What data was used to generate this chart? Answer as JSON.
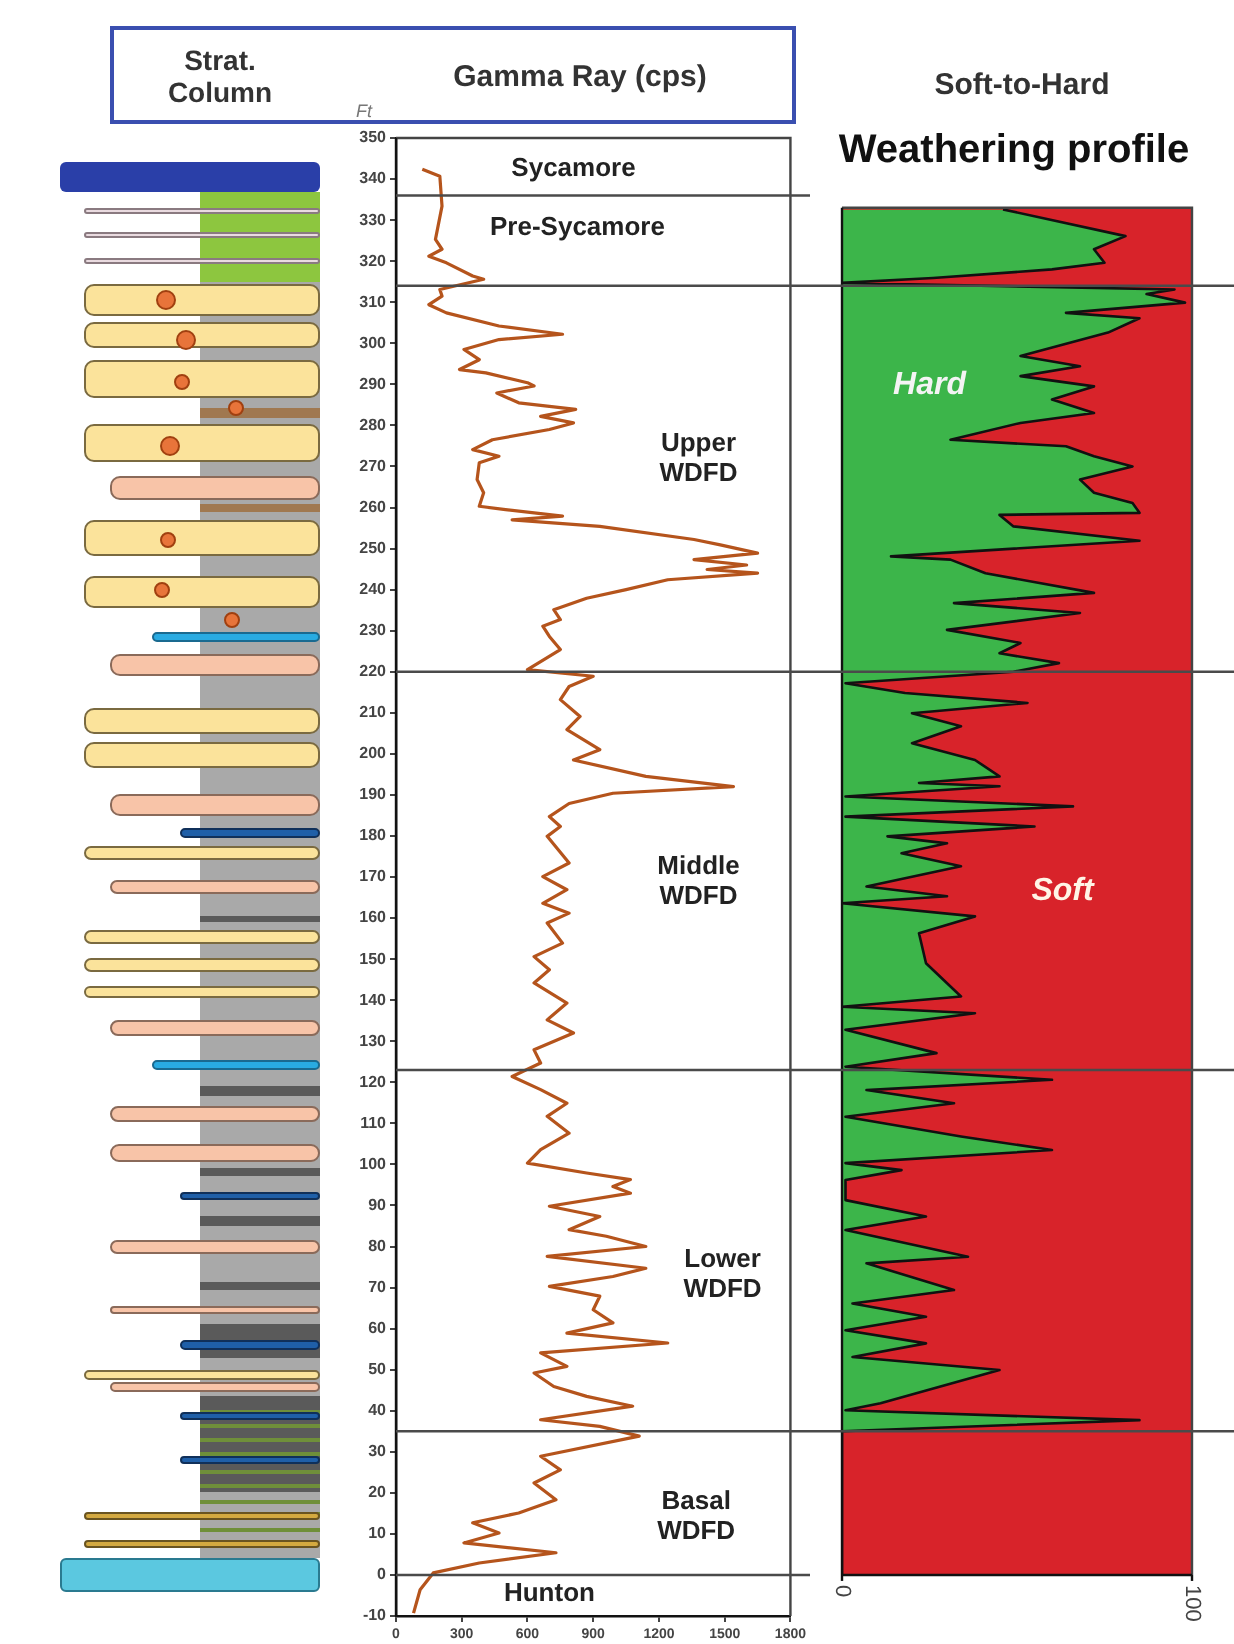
{
  "chart_data": [
    {
      "type": "other",
      "title": "Strat. Column"
    },
    {
      "type": "line",
      "title": "Gamma Ray (cps)",
      "ylabel": "Ft",
      "orientation": "horizontal",
      "grid": false,
      "xlim": [
        0,
        1800
      ],
      "xticks": [
        0,
        300,
        600,
        900,
        1200,
        1500,
        1800
      ],
      "ylim": [
        -10,
        350
      ],
      "yticks": [
        -10,
        0,
        10,
        20,
        30,
        40,
        50,
        60,
        70,
        80,
        90,
        100,
        110,
        120,
        130,
        140,
        150,
        160,
        170,
        180,
        190,
        200,
        210,
        220,
        230,
        240,
        250,
        260,
        270,
        280,
        290,
        300,
        310,
        320,
        330,
        340,
        350
      ],
      "series": [
        {
          "color": "#b5541c",
          "x": [
            342.4,
            340.7,
            333.4,
            325.3,
            322.9,
            321.2,
            319.6,
            316.4,
            315.6,
            313.1,
            311.5,
            309.4,
            307.4,
            304.2,
            302.2,
            300.9,
            298.5,
            296,
            293.6,
            292.8,
            290.4,
            289.6,
            287.9,
            285.5,
            283.9,
            282.2,
            280.6,
            279,
            276.5,
            274.1,
            272.5,
            270.9,
            266.8,
            263.6,
            260.3,
            259.5,
            257.9,
            257,
            255.4,
            252.2,
            250.9,
            248.9,
            247.3,
            246,
            244.9,
            244,
            242.4,
            240,
            237.9,
            235.1,
            232.7,
            231.1,
            228.6,
            225.4,
            220.5,
            218.9,
            216.4,
            213.2,
            209.1,
            205.9,
            201,
            198.5,
            194.5,
            192,
            190.4,
            187.9,
            184.7,
            182.3,
            179.9,
            173.4,
            170.1,
            166.9,
            163.6,
            161.2,
            158.8,
            153.9,
            150.6,
            147.4,
            144.2,
            139.3,
            135.2,
            132,
            127.9,
            124.7,
            121.4,
            118.2,
            114.9,
            111.7,
            107.6,
            103.6,
            100.3,
            97.9,
            96.3,
            94.6,
            93,
            89.8,
            87.3,
            84.1,
            82.5,
            80,
            77.6,
            74.7,
            72.7,
            70.3,
            67.9,
            64.6,
            61.4,
            58.9,
            56.5,
            54.1,
            50.8,
            49.2,
            45.9,
            43.5,
            41.1,
            37.8,
            36.2,
            33.8,
            28.9,
            25.6,
            22.4,
            18.3,
            15.1,
            12.7,
            10.2,
            7.8,
            5.4,
            2.9,
            0.5,
            -3.6,
            -9.3
          ],
          "values": [
            120,
            200,
            210,
            180,
            210,
            150,
            230,
            350,
            400,
            200,
            210,
            150,
            230,
            470,
            760,
            470,
            310,
            380,
            290,
            410,
            600,
            630,
            460,
            560,
            820,
            660,
            810,
            700,
            440,
            350,
            470,
            380,
            370,
            400,
            380,
            500,
            760,
            530,
            930,
            1360,
            1480,
            1650,
            1360,
            1600,
            1420,
            1650,
            1240,
            1050,
            870,
            720,
            750,
            670,
            700,
            750,
            600,
            900,
            790,
            750,
            840,
            780,
            930,
            810,
            1140,
            1540,
            990,
            790,
            700,
            750,
            690,
            790,
            670,
            780,
            670,
            790,
            690,
            760,
            630,
            700,
            630,
            780,
            690,
            810,
            630,
            660,
            530,
            660,
            780,
            690,
            790,
            660,
            600,
            870,
            1070,
            990,
            1070,
            700,
            930,
            790,
            960,
            1140,
            690,
            1140,
            990,
            700,
            930,
            900,
            990,
            780,
            1240,
            660,
            780,
            630,
            720,
            870,
            1080,
            660,
            930,
            1110,
            660,
            750,
            630,
            730,
            560,
            350,
            470,
            310,
            730,
            380,
            170,
            110,
            80
          ]
        }
      ],
      "ref_lines": [
        {
          "axis": "y",
          "value": 336
        },
        {
          "axis": "y",
          "value": 314
        },
        {
          "axis": "y",
          "value": 220
        },
        {
          "axis": "y",
          "value": 123
        },
        {
          "axis": "y",
          "value": 35
        },
        {
          "axis": "y",
          "value": 0
        }
      ],
      "annotations": [
        "Sycamore",
        "Pre-Sycamore",
        "Upper\nWDFD",
        "Middle\nWDFD",
        "Lower\nWDFD",
        "Basal\nWDFD",
        "Hunton"
      ]
    },
    {
      "type": "area",
      "title": "Soft-to-Hard",
      "subtitle": "Weathering profile",
      "orientation": "horizontal",
      "tick_labels": "x",
      "xlim": [
        0,
        100
      ],
      "xticks": [
        0,
        100
      ],
      "ylim": [
        -10,
        350
      ],
      "yticks": [
        -10,
        0,
        10,
        20,
        30,
        40,
        50,
        60,
        70,
        80,
        90,
        100,
        110,
        120,
        130,
        140,
        150,
        160,
        170,
        180,
        190,
        200,
        210,
        220,
        230,
        240,
        250,
        260,
        270,
        280,
        290,
        300,
        310,
        320,
        330,
        340,
        350
      ],
      "series": [
        {
          "color": "#3cb54a",
          "x": [
            332.6,
            326.1,
            322.9,
            319.6,
            318,
            315.9,
            314.7,
            313.1,
            312,
            309.9,
            307.4,
            306.1,
            302.6,
            296.9,
            294.4,
            292,
            289.5,
            286.3,
            283,
            280.6,
            276.5,
            274.9,
            272.5,
            270,
            266.8,
            263.6,
            261.1,
            258.7,
            258.2,
            255.4,
            251.9,
            248.1,
            247.3,
            244,
            239.2,
            236.7,
            234.3,
            230.2,
            227,
            224.5,
            222.1,
            220,
            217.2,
            214.8,
            212.4,
            209.9,
            206.7,
            202.6,
            198.5,
            194.5,
            192.9,
            192.1,
            189.6,
            187.2,
            184.7,
            182.3,
            179.9,
            178.2,
            175.8,
            172.6,
            167.7,
            165.3,
            163.6,
            160.4,
            156.3,
            149,
            140.9,
            138.4,
            136.8,
            132.8,
            127.1,
            123.8,
            120.6,
            118.1,
            114.9,
            111.6,
            106.8,
            103.5,
            100.3,
            98.6,
            96.2,
            91.3,
            87.3,
            84,
            77.5,
            75.9,
            69.4,
            66.1,
            62.9,
            59.6,
            56.4,
            53.1,
            49.9,
            41.8,
            40.1,
            37.7,
            35,
            0
          ],
          "values": [
            46,
            81,
            72,
            75,
            60,
            26,
            0,
            95,
            87,
            98,
            64,
            85,
            76,
            51,
            68,
            51,
            72,
            60,
            72,
            51,
            31,
            64,
            72,
            83,
            68,
            72,
            83,
            85,
            45,
            49,
            85,
            14,
            31,
            41,
            72,
            32,
            68,
            30,
            51,
            45,
            62,
            49,
            1,
            18,
            53,
            20,
            34,
            20,
            38,
            45,
            22,
            45,
            1,
            66,
            1,
            55,
            13,
            30,
            17,
            34,
            7,
            30,
            0,
            38,
            22,
            24,
            34,
            0,
            38,
            1,
            27,
            1,
            60,
            7,
            32,
            1,
            34,
            60,
            1,
            17,
            1,
            1,
            24,
            1,
            36,
            7,
            32,
            3,
            24,
            1,
            24,
            3,
            45,
            11,
            1,
            85,
            0,
            0
          ]
        }
      ],
      "bands": [
        {
          "axis": "y",
          "from": 0,
          "to": 333,
          "color": "#d8232a",
          "label": "Soft"
        }
      ],
      "ref_lines": [
        {
          "axis": "y",
          "value": 314
        },
        {
          "axis": "y",
          "value": 220
        },
        {
          "axis": "y",
          "value": 123
        },
        {
          "axis": "y",
          "value": 35
        }
      ],
      "annotations": [
        "Hard"
      ]
    }
  ]
}
